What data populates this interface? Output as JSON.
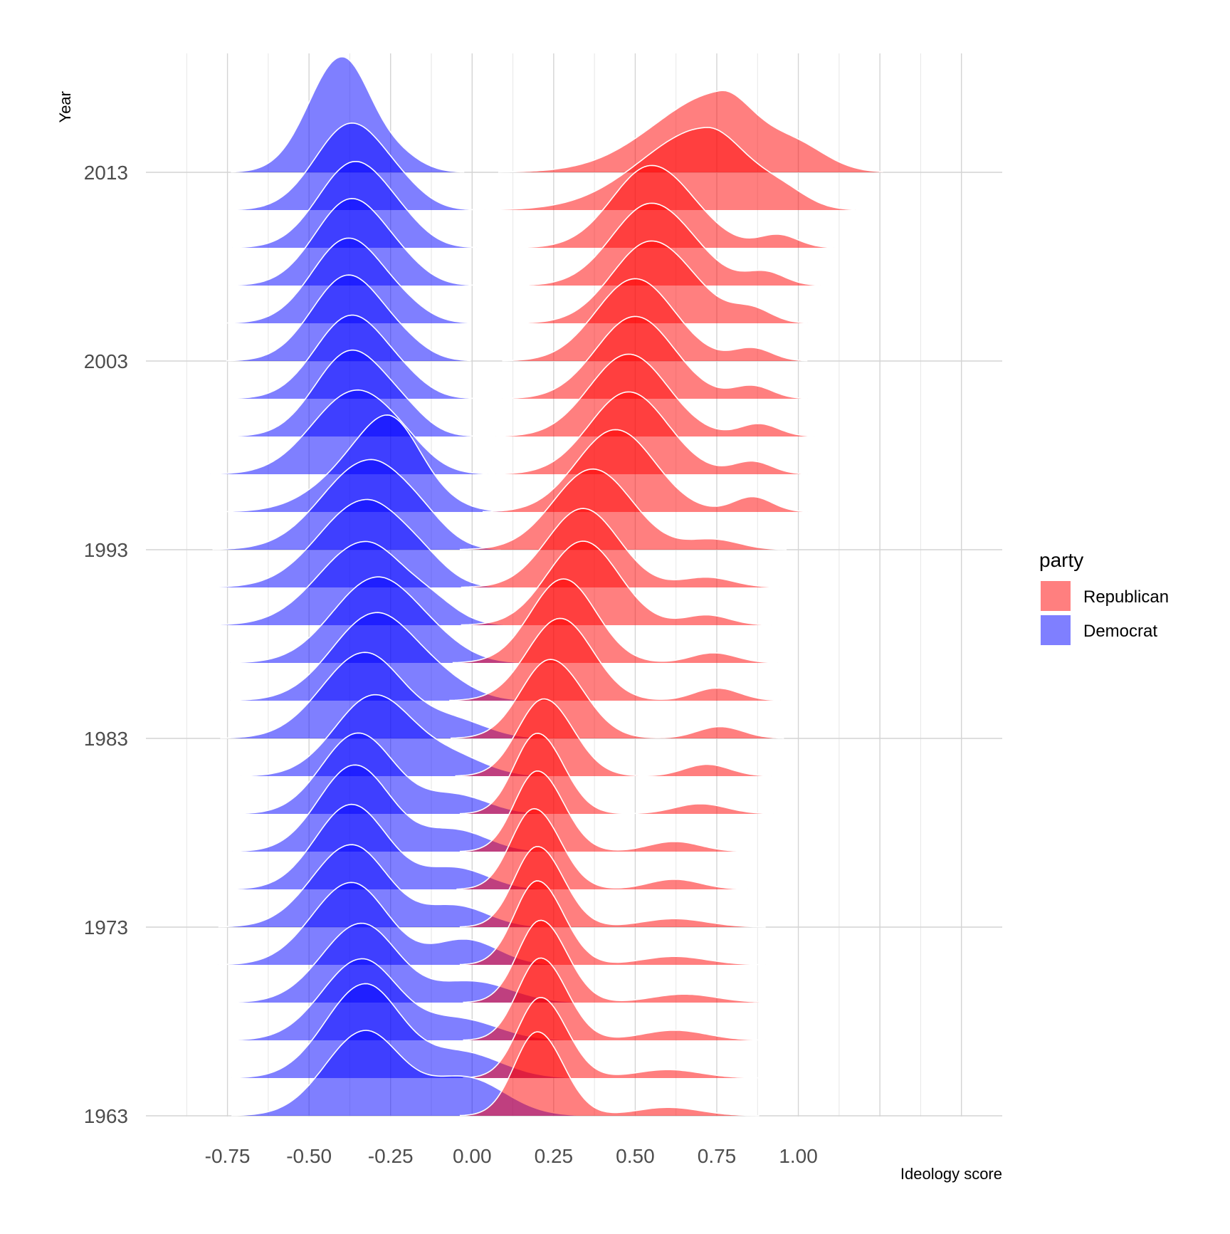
{
  "chart_data": {
    "type": "ridgeline",
    "xlabel": "Ideology score",
    "ylabel": "Year",
    "x_ticks": [
      -0.75,
      -0.5,
      -0.25,
      0.0,
      0.25,
      0.5,
      0.75,
      1.0
    ],
    "x_tick_labels": [
      "-0.75",
      "-0.50",
      "-0.25",
      "0.00",
      "0.25",
      "0.50",
      "0.75",
      "1.00"
    ],
    "xlim": [
      -1.0,
      1.625
    ],
    "y_ticks": [
      1963,
      1973,
      1983,
      1993,
      2003,
      2013
    ],
    "y_tick_labels": [
      "1963",
      "1973",
      "1983",
      "1993",
      "2003",
      "2013"
    ],
    "ylim": [
      1963,
      2013
    ],
    "years": [
      1963,
      1965,
      1967,
      1969,
      1971,
      1973,
      1975,
      1977,
      1979,
      1981,
      1983,
      1985,
      1987,
      1989,
      1991,
      1993,
      1995,
      1997,
      1999,
      2001,
      2003,
      2005,
      2007,
      2009,
      2011,
      2013
    ],
    "grid": true,
    "legend": {
      "title": "party",
      "position": "right",
      "entries": [
        {
          "label": "Republican",
          "color": "#FF0000"
        },
        {
          "label": "Democrat",
          "color": "#0000FF"
        }
      ]
    },
    "series": [
      {
        "name": "Democrat",
        "color": "#0000FF",
        "peak_mode": [
          -0.33,
          -0.33,
          -0.34,
          -0.34,
          -0.37,
          -0.37,
          -0.37,
          -0.36,
          -0.35,
          -0.3,
          -0.33,
          -0.3,
          -0.3,
          -0.33,
          -0.33,
          -0.32,
          -0.27,
          -0.36,
          -0.37,
          -0.37,
          -0.38,
          -0.38,
          -0.37,
          -0.36,
          -0.37,
          -0.4
        ],
        "peak_height": [
          1.0,
          1.11,
          0.96,
          0.94,
          0.98,
          0.98,
          1.01,
          1.03,
          0.96,
          0.96,
          1.02,
          1.02,
          0.98,
          0.99,
          1.03,
          1.05,
          0.86,
          0.98,
          1.02,
          0.99,
          1.02,
          1.01,
          1.03,
          1.02,
          1.03,
          1.37
        ],
        "spread_left": [
          0.12,
          0.12,
          0.12,
          0.12,
          0.12,
          0.12,
          0.11,
          0.11,
          0.11,
          0.12,
          0.13,
          0.13,
          0.13,
          0.14,
          0.14,
          0.14,
          0.15,
          0.13,
          0.11,
          0.11,
          0.11,
          0.11,
          0.11,
          0.11,
          0.11,
          0.1
        ],
        "spread_right": [
          0.11,
          0.11,
          0.11,
          0.11,
          0.11,
          0.11,
          0.11,
          0.11,
          0.11,
          0.12,
          0.12,
          0.12,
          0.12,
          0.12,
          0.12,
          0.12,
          0.12,
          0.12,
          0.11,
          0.11,
          0.11,
          0.11,
          0.11,
          0.11,
          0.11,
          0.09
        ],
        "tail_mode": [
          -0.02,
          -0.03,
          -0.04,
          0.0,
          -0.02,
          -0.05,
          -0.05,
          -0.05,
          -0.05,
          -0.05,
          -0.05,
          -0.1,
          -0.12,
          -0.12,
          -0.15,
          -0.15,
          -0.25,
          -0.2,
          -0.2,
          -0.2,
          -0.2,
          -0.2,
          -0.2,
          -0.2,
          -0.2,
          -0.22
        ],
        "tail_height": [
          0.45,
          0.3,
          0.25,
          0.25,
          0.3,
          0.25,
          0.25,
          0.25,
          0.22,
          0.2,
          0.2,
          0.2,
          0.2,
          0.2,
          0.2,
          0.2,
          0.3,
          0.15,
          0.15,
          0.1,
          0.1,
          0.1,
          0.1,
          0.1,
          0.1,
          0.15
        ],
        "tail_spread": [
          0.12,
          0.12,
          0.12,
          0.12,
          0.1,
          0.1,
          0.1,
          0.1,
          0.1,
          0.1,
          0.1,
          0.1,
          0.1,
          0.08,
          0.08,
          0.08,
          0.08,
          0.08,
          0.07,
          0.07,
          0.07,
          0.07,
          0.07,
          0.07,
          0.07,
          0.07
        ]
      },
      {
        "name": "Republican",
        "color": "#FF0000",
        "peak_mode": [
          0.2,
          0.21,
          0.21,
          0.21,
          0.2,
          0.2,
          0.19,
          0.2,
          0.2,
          0.22,
          0.24,
          0.27,
          0.28,
          0.34,
          0.34,
          0.37,
          0.44,
          0.48,
          0.48,
          0.5,
          0.5,
          0.55,
          0.55,
          0.55,
          0.72,
          0.76
        ],
        "peak_height": [
          1.0,
          0.96,
          0.98,
          0.98,
          1.0,
          0.96,
          0.96,
          0.96,
          0.96,
          0.92,
          0.94,
          0.98,
          1.0,
          1.0,
          0.94,
          0.96,
          0.98,
          0.98,
          0.98,
          0.98,
          0.98,
          0.98,
          0.98,
          0.98,
          0.98,
          0.94
        ],
        "spread_left": [
          0.07,
          0.07,
          0.07,
          0.07,
          0.07,
          0.07,
          0.07,
          0.07,
          0.07,
          0.08,
          0.09,
          0.1,
          0.1,
          0.11,
          0.11,
          0.12,
          0.12,
          0.12,
          0.12,
          0.12,
          0.12,
          0.12,
          0.12,
          0.12,
          0.2,
          0.2
        ],
        "spread_right": [
          0.08,
          0.08,
          0.08,
          0.08,
          0.08,
          0.08,
          0.08,
          0.08,
          0.08,
          0.09,
          0.1,
          0.1,
          0.1,
          0.11,
          0.11,
          0.12,
          0.12,
          0.12,
          0.12,
          0.12,
          0.12,
          0.13,
          0.13,
          0.13,
          0.12,
          0.1
        ],
        "tail_mode": [
          0.6,
          0.6,
          0.62,
          0.65,
          0.62,
          0.62,
          0.62,
          0.62,
          0.7,
          0.72,
          0.76,
          0.75,
          0.74,
          0.72,
          0.72,
          0.74,
          0.86,
          0.86,
          0.88,
          0.86,
          0.86,
          0.86,
          0.9,
          0.94,
          0.95,
          0.98
        ],
        "tail_height": [
          0.1,
          0.1,
          0.12,
          0.1,
          0.1,
          0.1,
          0.12,
          0.12,
          0.12,
          0.14,
          0.14,
          0.15,
          0.12,
          0.12,
          0.12,
          0.12,
          0.18,
          0.15,
          0.15,
          0.15,
          0.15,
          0.15,
          0.15,
          0.15,
          0.2,
          0.35
        ],
        "tail_spread": [
          0.1,
          0.1,
          0.1,
          0.1,
          0.1,
          0.1,
          0.08,
          0.08,
          0.08,
          0.07,
          0.07,
          0.07,
          0.07,
          0.07,
          0.08,
          0.08,
          0.06,
          0.06,
          0.06,
          0.06,
          0.06,
          0.06,
          0.06,
          0.06,
          0.08,
          0.1
        ]
      }
    ]
  }
}
